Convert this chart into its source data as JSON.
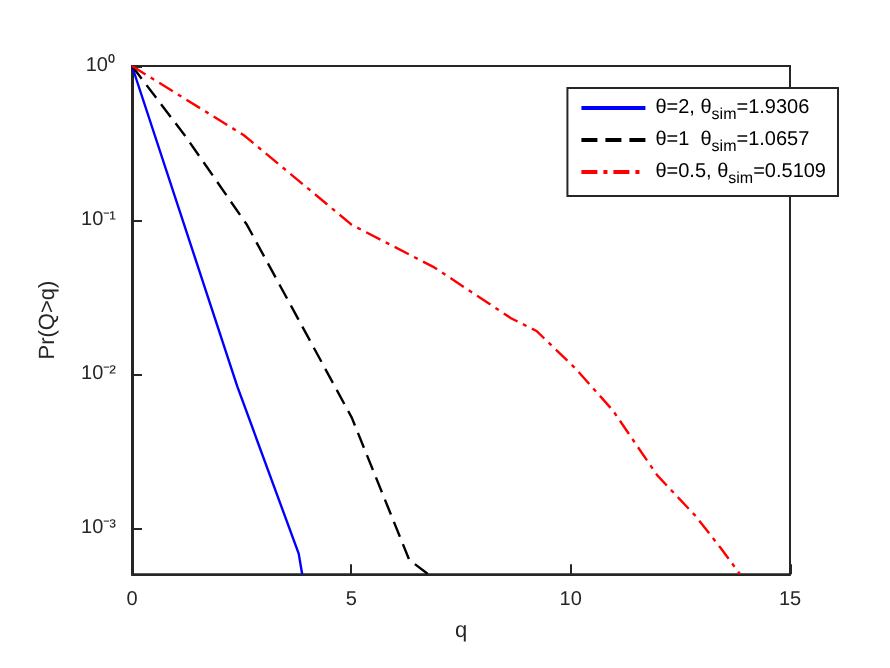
{
  "chart_data": {
    "type": "line",
    "xlabel": "q",
    "ylabel": "Pr(Q>q)",
    "log": "y",
    "xlim": [
      0,
      15
    ],
    "xticks": [
      0,
      5,
      10,
      15
    ],
    "ylim": [
      0.0005,
      1
    ],
    "yticks": [
      {
        "value": 0.001,
        "label": "10⁻³"
      },
      {
        "value": 0.01,
        "label": "10⁻²"
      },
      {
        "value": 0.1,
        "label": "10⁻¹"
      },
      {
        "value": 1,
        "label": "10⁰"
      }
    ],
    "grid": false,
    "legend": "top right",
    "marker": "none",
    "series": [
      {
        "name": "θ=2, θ$_{sim}$=1.9306",
        "color": "#0000ff",
        "line_style": "solid",
        "x": [
          0,
          2.4,
          3.8,
          3.88
        ],
        "values": [
          1,
          0.0083,
          0.00068,
          0.0005
        ]
      },
      {
        "name": "θ=1  θ$_{sim}$=1.0657",
        "color": "#000000",
        "line_style": "dashed",
        "x": [
          0,
          1.25,
          2.62,
          3.71,
          5.01,
          6.32,
          6.75
        ],
        "values": [
          1,
          0.34,
          0.093,
          0.025,
          0.0052,
          0.00062,
          0.0005
        ]
      },
      {
        "name": "θ=0.5, θ$_{sim}$=0.5109",
        "color": "#ff0000",
        "line_style": "dashdot",
        "x": [
          0,
          2.55,
          5.01,
          6.9,
          8.64,
          9.22,
          10.09,
          10.96,
          11.97,
          12.84,
          13.42,
          13.86
        ],
        "values": [
          1,
          0.355,
          0.093,
          0.049,
          0.023,
          0.019,
          0.011,
          0.0058,
          0.0022,
          0.0012,
          0.00074,
          0.0005
        ]
      }
    ]
  }
}
